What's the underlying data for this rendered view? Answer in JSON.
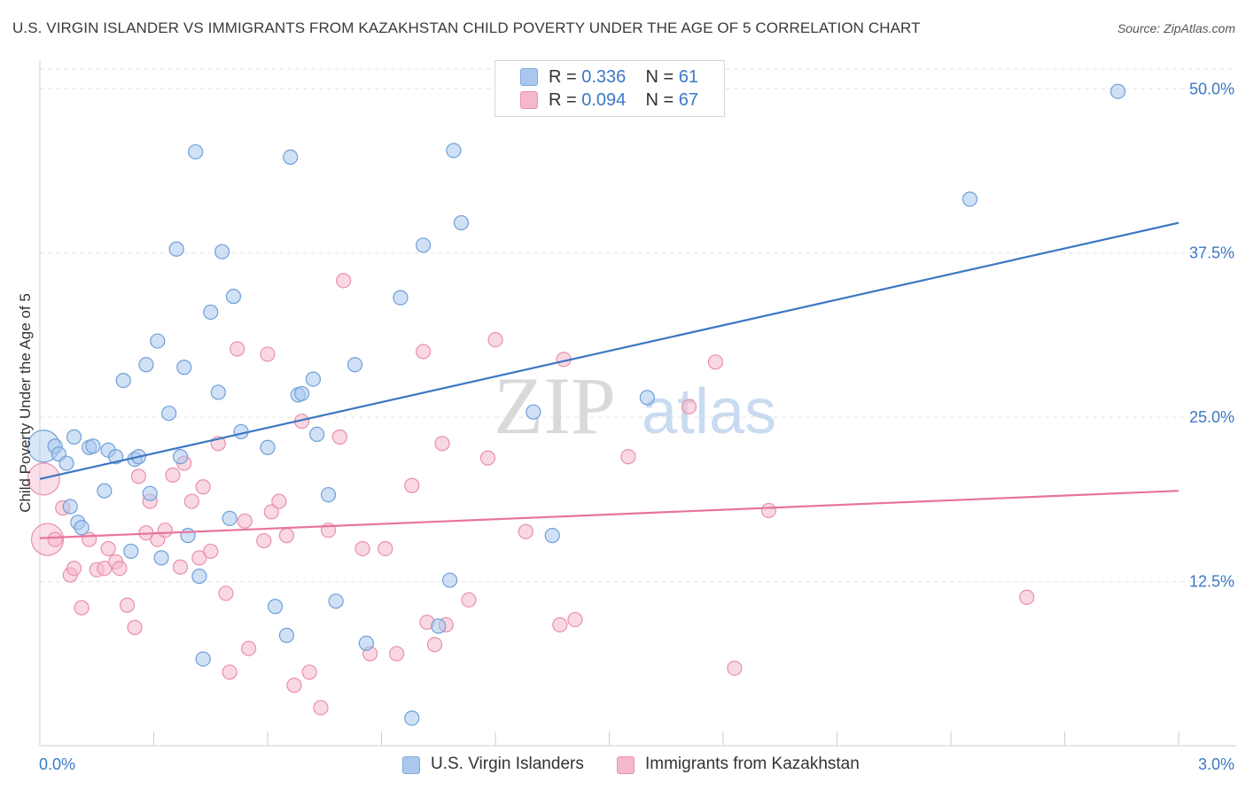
{
  "title": "U.S. VIRGIN ISLANDER VS IMMIGRANTS FROM KAZAKHSTAN CHILD POVERTY UNDER THE AGE OF 5 CORRELATION CHART",
  "source": "Source: ZipAtlas.com",
  "watermark": {
    "zip": "ZIP",
    "atlas": "atlas"
  },
  "legend": {
    "series1": {
      "r_label": "R = ",
      "r_value": "0.336",
      "n_label": "N = ",
      "n_value": "61"
    },
    "series2": {
      "r_label": "R = ",
      "r_value": "0.094",
      "n_label": "N = ",
      "n_value": "67"
    }
  },
  "chart_data": {
    "type": "scatter",
    "title": "U.S. VIRGIN ISLANDER VS IMMIGRANTS FROM KAZAKHSTAN CHILD POVERTY UNDER THE AGE OF 5 CORRELATION CHART",
    "xlabel": "",
    "ylabel": "Child Poverty Under the Age of 5",
    "xlim": [
      0,
      3.0
    ],
    "ylim": [
      0,
      51.5
    ],
    "x_tick_labels": [
      "0.0%",
      "3.0%"
    ],
    "y_ticks": [
      12.5,
      25.0,
      37.5,
      50.0
    ],
    "y_tick_labels": [
      "12.5%",
      "25.0%",
      "37.5%",
      "50.0%"
    ],
    "grid": true,
    "legend_position": "top-center",
    "colors": {
      "blue": "#3b78c4",
      "blue_fill": "#aac8ee",
      "pink": "#e8749c",
      "pink_fill": "#f5b8cb"
    },
    "series": [
      {
        "name": "U.S. Virgin Islanders",
        "color": "#3b78c4",
        "trend": {
          "x": [
            0.0,
            3.0
          ],
          "y": [
            20.3,
            39.8
          ]
        },
        "points": [
          {
            "x": 0.01,
            "y": 22.8,
            "big": true
          },
          {
            "x": 0.04,
            "y": 22.8
          },
          {
            "x": 0.05,
            "y": 22.2
          },
          {
            "x": 0.07,
            "y": 21.5
          },
          {
            "x": 0.08,
            "y": 18.2
          },
          {
            "x": 0.09,
            "y": 23.5
          },
          {
            "x": 0.1,
            "y": 17.0
          },
          {
            "x": 0.11,
            "y": 16.6
          },
          {
            "x": 0.13,
            "y": 22.7
          },
          {
            "x": 0.14,
            "y": 22.8
          },
          {
            "x": 0.17,
            "y": 19.4
          },
          {
            "x": 0.18,
            "y": 22.5
          },
          {
            "x": 0.2,
            "y": 22.0
          },
          {
            "x": 0.22,
            "y": 27.8
          },
          {
            "x": 0.24,
            "y": 14.8
          },
          {
            "x": 0.25,
            "y": 21.8
          },
          {
            "x": 0.26,
            "y": 22.0
          },
          {
            "x": 0.28,
            "y": 29.0
          },
          {
            "x": 0.29,
            "y": 19.2
          },
          {
            "x": 0.31,
            "y": 30.8
          },
          {
            "x": 0.32,
            "y": 14.3
          },
          {
            "x": 0.34,
            "y": 25.3
          },
          {
            "x": 0.36,
            "y": 37.8
          },
          {
            "x": 0.37,
            "y": 22.0
          },
          {
            "x": 0.38,
            "y": 28.8
          },
          {
            "x": 0.39,
            "y": 16.0
          },
          {
            "x": 0.41,
            "y": 45.2
          },
          {
            "x": 0.42,
            "y": 12.9
          },
          {
            "x": 0.43,
            "y": 6.6
          },
          {
            "x": 0.45,
            "y": 33.0
          },
          {
            "x": 0.47,
            "y": 26.9
          },
          {
            "x": 0.48,
            "y": 37.6
          },
          {
            "x": 0.5,
            "y": 17.3
          },
          {
            "x": 0.51,
            "y": 34.2
          },
          {
            "x": 0.53,
            "y": 23.9
          },
          {
            "x": 0.6,
            "y": 22.7
          },
          {
            "x": 0.62,
            "y": 10.6
          },
          {
            "x": 0.65,
            "y": 8.4
          },
          {
            "x": 0.66,
            "y": 44.8
          },
          {
            "x": 0.68,
            "y": 26.7
          },
          {
            "x": 0.69,
            "y": 26.8
          },
          {
            "x": 0.72,
            "y": 27.9
          },
          {
            "x": 0.73,
            "y": 23.7
          },
          {
            "x": 0.76,
            "y": 19.1
          },
          {
            "x": 0.78,
            "y": 11.0
          },
          {
            "x": 0.83,
            "y": 29.0
          },
          {
            "x": 0.86,
            "y": 7.8
          },
          {
            "x": 0.95,
            "y": 34.1
          },
          {
            "x": 0.98,
            "y": 2.1
          },
          {
            "x": 1.01,
            "y": 38.1
          },
          {
            "x": 1.05,
            "y": 9.1
          },
          {
            "x": 1.08,
            "y": 12.6
          },
          {
            "x": 1.09,
            "y": 45.3
          },
          {
            "x": 1.11,
            "y": 39.8
          },
          {
            "x": 1.3,
            "y": 25.4
          },
          {
            "x": 1.35,
            "y": 16.0
          },
          {
            "x": 1.6,
            "y": 26.5
          },
          {
            "x": 2.45,
            "y": 41.6
          },
          {
            "x": 2.84,
            "y": 49.8
          }
        ]
      },
      {
        "name": "Immigrants from Kazakhstan",
        "color": "#e8749c",
        "trend": {
          "x": [
            0.0,
            3.0
          ],
          "y": [
            15.8,
            19.4
          ]
        },
        "points": [
          {
            "x": 0.01,
            "y": 20.3,
            "big": true
          },
          {
            "x": 0.02,
            "y": 15.7,
            "big": true
          },
          {
            "x": 0.04,
            "y": 15.7
          },
          {
            "x": 0.06,
            "y": 18.1
          },
          {
            "x": 0.08,
            "y": 13.0
          },
          {
            "x": 0.09,
            "y": 13.5
          },
          {
            "x": 0.11,
            "y": 10.5
          },
          {
            "x": 0.13,
            "y": 15.7
          },
          {
            "x": 0.15,
            "y": 13.4
          },
          {
            "x": 0.17,
            "y": 13.5
          },
          {
            "x": 0.18,
            "y": 15.0
          },
          {
            "x": 0.2,
            "y": 14.0
          },
          {
            "x": 0.21,
            "y": 13.5
          },
          {
            "x": 0.23,
            "y": 10.7
          },
          {
            "x": 0.25,
            "y": 9.0
          },
          {
            "x": 0.26,
            "y": 20.5
          },
          {
            "x": 0.28,
            "y": 16.2
          },
          {
            "x": 0.29,
            "y": 18.6
          },
          {
            "x": 0.31,
            "y": 15.7
          },
          {
            "x": 0.33,
            "y": 16.4
          },
          {
            "x": 0.35,
            "y": 20.6
          },
          {
            "x": 0.37,
            "y": 13.6
          },
          {
            "x": 0.38,
            "y": 21.5
          },
          {
            "x": 0.4,
            "y": 18.6
          },
          {
            "x": 0.42,
            "y": 14.3
          },
          {
            "x": 0.43,
            "y": 19.7
          },
          {
            "x": 0.45,
            "y": 14.8
          },
          {
            "x": 0.47,
            "y": 23.0
          },
          {
            "x": 0.49,
            "y": 11.6
          },
          {
            "x": 0.5,
            "y": 5.6
          },
          {
            "x": 0.52,
            "y": 30.2
          },
          {
            "x": 0.54,
            "y": 17.1
          },
          {
            "x": 0.55,
            "y": 7.4
          },
          {
            "x": 0.59,
            "y": 15.6
          },
          {
            "x": 0.6,
            "y": 29.8
          },
          {
            "x": 0.61,
            "y": 17.8
          },
          {
            "x": 0.63,
            "y": 18.6
          },
          {
            "x": 0.65,
            "y": 16.0
          },
          {
            "x": 0.67,
            "y": 4.6
          },
          {
            "x": 0.69,
            "y": 24.7
          },
          {
            "x": 0.71,
            "y": 5.6
          },
          {
            "x": 0.74,
            "y": 2.9
          },
          {
            "x": 0.76,
            "y": 16.4
          },
          {
            "x": 0.79,
            "y": 23.5
          },
          {
            "x": 0.8,
            "y": 35.4
          },
          {
            "x": 0.85,
            "y": 15.0
          },
          {
            "x": 0.87,
            "y": 7.0
          },
          {
            "x": 0.91,
            "y": 15.0
          },
          {
            "x": 0.94,
            "y": 7.0
          },
          {
            "x": 0.98,
            "y": 19.8
          },
          {
            "x": 1.01,
            "y": 30.0
          },
          {
            "x": 1.02,
            "y": 9.4
          },
          {
            "x": 1.04,
            "y": 7.7
          },
          {
            "x": 1.06,
            "y": 23.0
          },
          {
            "x": 1.07,
            "y": 9.2
          },
          {
            "x": 1.13,
            "y": 11.1
          },
          {
            "x": 1.18,
            "y": 21.9
          },
          {
            "x": 1.2,
            "y": 30.9
          },
          {
            "x": 1.28,
            "y": 16.3
          },
          {
            "x": 1.37,
            "y": 9.2
          },
          {
            "x": 1.38,
            "y": 29.4
          },
          {
            "x": 1.41,
            "y": 9.6
          },
          {
            "x": 1.55,
            "y": 22.0
          },
          {
            "x": 1.71,
            "y": 25.8
          },
          {
            "x": 1.78,
            "y": 29.2
          },
          {
            "x": 1.83,
            "y": 5.9
          },
          {
            "x": 1.92,
            "y": 17.9
          },
          {
            "x": 2.6,
            "y": 11.3
          }
        ]
      }
    ]
  }
}
